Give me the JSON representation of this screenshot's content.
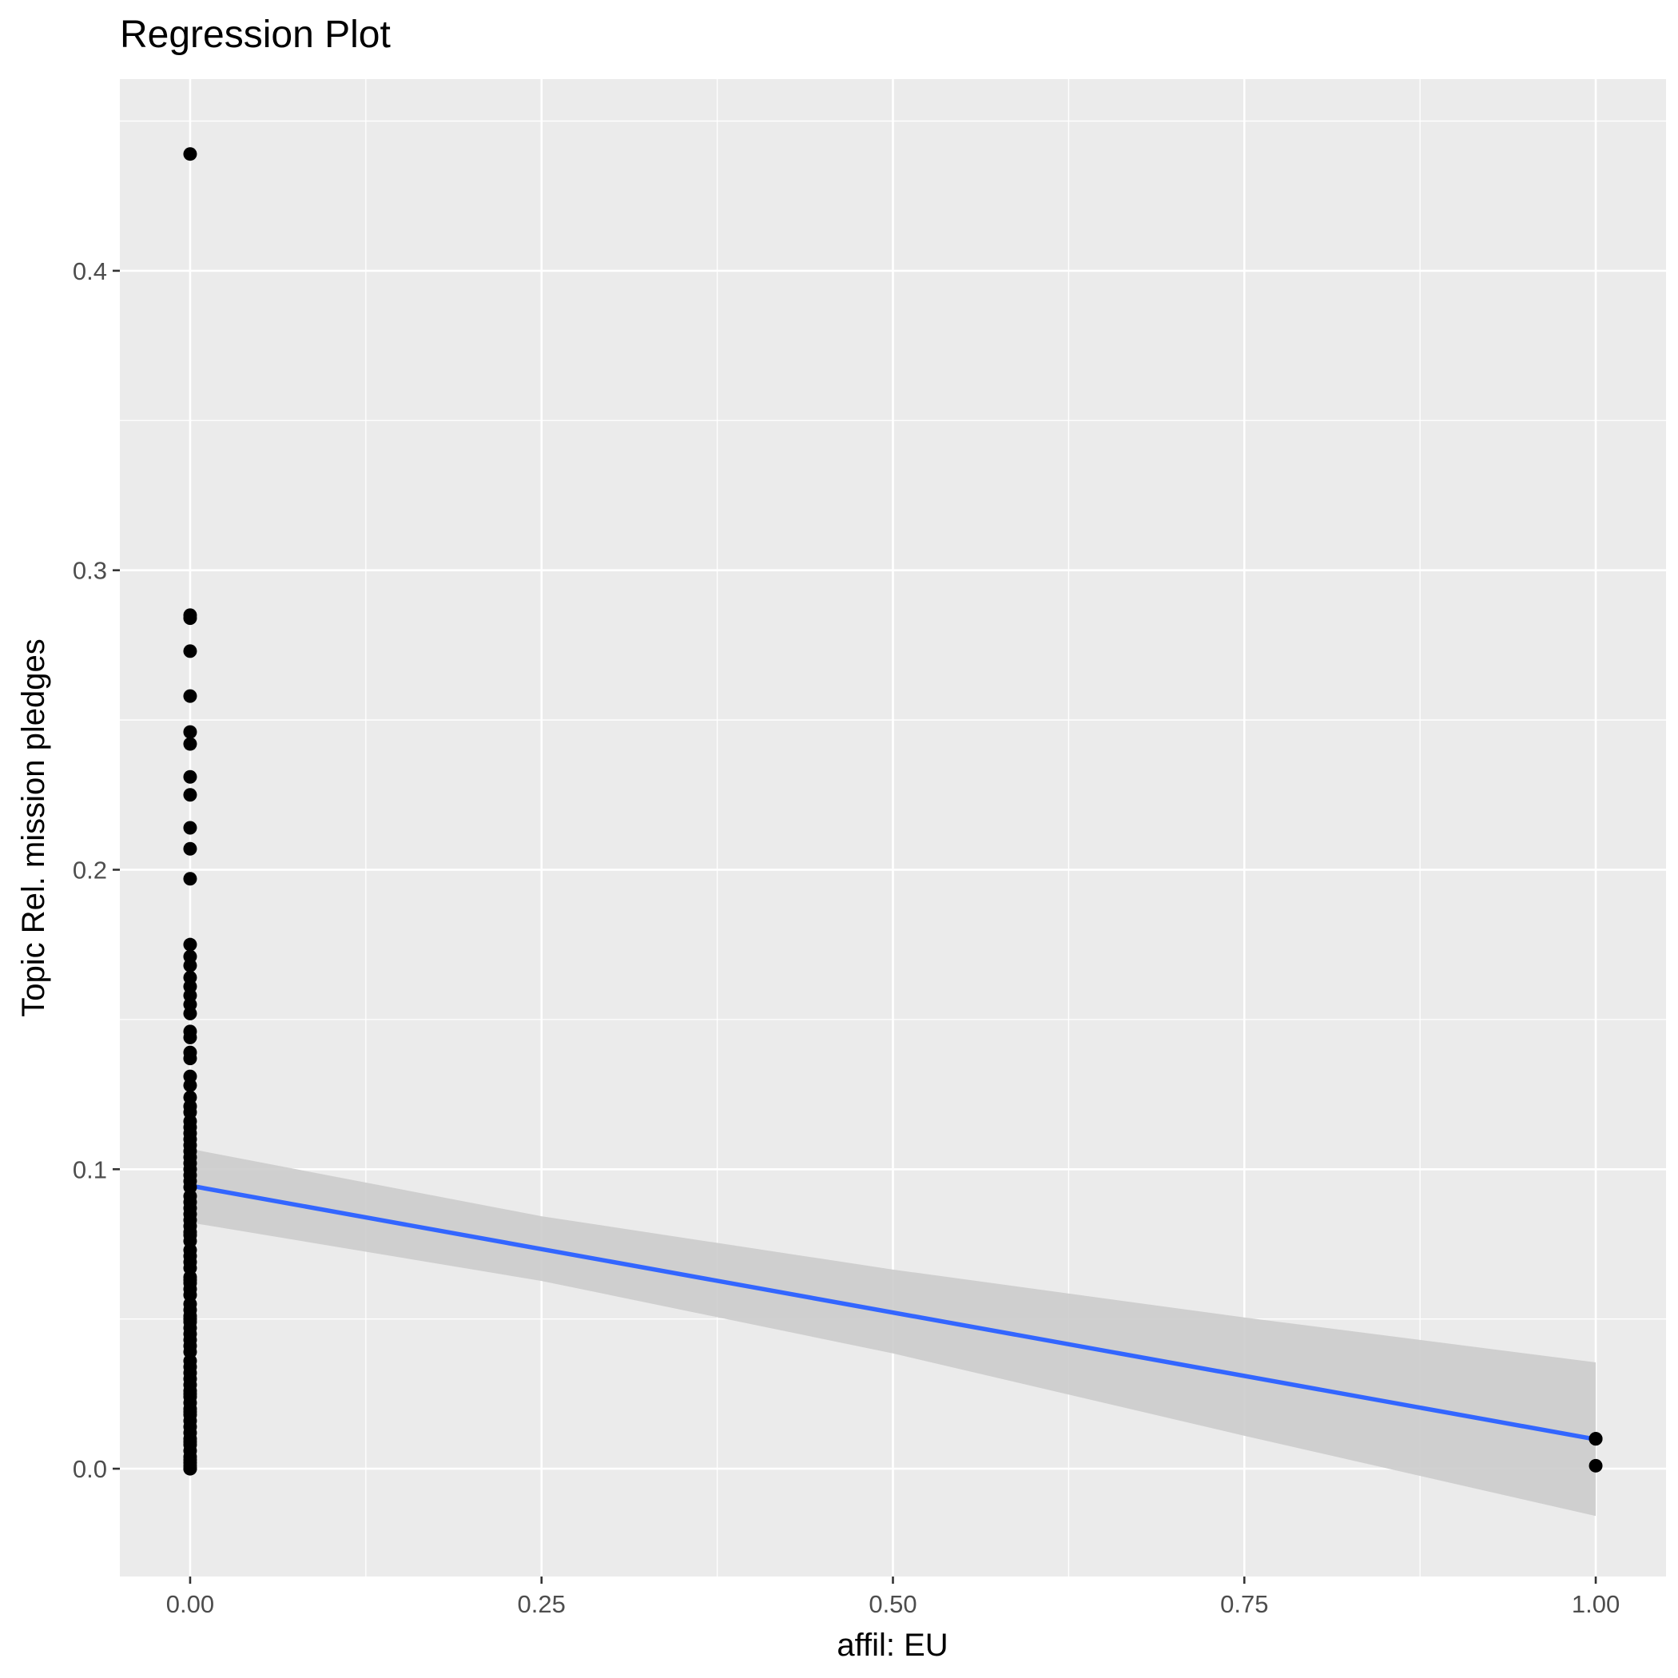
{
  "chart_data": {
    "type": "scatter",
    "title": "Regression Plot",
    "xlabel": "affil: EU",
    "ylabel": "Topic Rel. mission pledges",
    "xlim": [
      -0.05,
      1.05
    ],
    "ylim": [
      -0.036,
      0.464
    ],
    "x_ticks": [
      0.0,
      0.25,
      0.5,
      0.75,
      1.0
    ],
    "x_tick_labels": [
      "0.00",
      "0.25",
      "0.50",
      "0.75",
      "1.00"
    ],
    "y_ticks": [
      0.0,
      0.1,
      0.2,
      0.3,
      0.4
    ],
    "y_tick_labels": [
      "0.0",
      "0.1",
      "0.2",
      "0.3",
      "0.4"
    ],
    "grid": true,
    "colors": {
      "panel_background": "#ebebeb",
      "grid": "#ffffff",
      "points": "#000000",
      "fit_line": "#3366ff",
      "confidence_band": "#cccccc"
    },
    "points": {
      "x": [
        0,
        0,
        0,
        0,
        0,
        0,
        0,
        0,
        0,
        0,
        0,
        0,
        0,
        0,
        0,
        0,
        0,
        0,
        0,
        0,
        0,
        0,
        0,
        0,
        0,
        0,
        0,
        0,
        0,
        0,
        0,
        0,
        0,
        0,
        0,
        0,
        0,
        0,
        0,
        0,
        0,
        0,
        0,
        0,
        0,
        0,
        0,
        0,
        0,
        0,
        0,
        0,
        0,
        0,
        0,
        0,
        0,
        0,
        0,
        0,
        0,
        0,
        0,
        0,
        0,
        0,
        0,
        0,
        0,
        0,
        0,
        0,
        0,
        0,
        0,
        0,
        0,
        0,
        0,
        0,
        0,
        0,
        0,
        0,
        0,
        0,
        0,
        0,
        0,
        0,
        0,
        0,
        0,
        0,
        1,
        1,
        1
      ],
      "y": [
        0.439,
        0.285,
        0.284,
        0.273,
        0.258,
        0.246,
        0.242,
        0.231,
        0.225,
        0.214,
        0.207,
        0.197,
        0.175,
        0.171,
        0.168,
        0.164,
        0.161,
        0.158,
        0.155,
        0.152,
        0.146,
        0.144,
        0.139,
        0.137,
        0.131,
        0.128,
        0.124,
        0.121,
        0.119,
        0.116,
        0.114,
        0.112,
        0.11,
        0.108,
        0.106,
        0.104,
        0.102,
        0.1,
        0.098,
        0.096,
        0.094,
        0.091,
        0.089,
        0.087,
        0.085,
        0.083,
        0.081,
        0.079,
        0.076,
        0.073,
        0.071,
        0.069,
        0.067,
        0.064,
        0.062,
        0.06,
        0.058,
        0.055,
        0.053,
        0.051,
        0.049,
        0.047,
        0.045,
        0.043,
        0.041,
        0.039,
        0.036,
        0.034,
        0.032,
        0.03,
        0.028,
        0.026,
        0.024,
        0.022,
        0.02,
        0.018,
        0.016,
        0.014,
        0.012,
        0.01,
        0.008,
        0.006,
        0.004,
        0.003,
        0.002,
        0.001,
        0.0,
        0.0,
        0.078,
        0.063,
        0.05,
        0.025,
        0.019,
        0.009,
        0.01,
        0.01,
        0.001
      ]
    },
    "fit_line": {
      "x": [
        0,
        1
      ],
      "y": [
        0.0945,
        0.0098
      ]
    },
    "confidence_band": {
      "x": [
        0,
        0.25,
        0.5,
        0.75,
        1
      ],
      "upper": [
        0.1068,
        0.0843,
        0.0665,
        0.0505,
        0.0355
      ],
      "lower": [
        0.0822,
        0.0627,
        0.0385,
        0.011,
        -0.0158
      ]
    }
  }
}
